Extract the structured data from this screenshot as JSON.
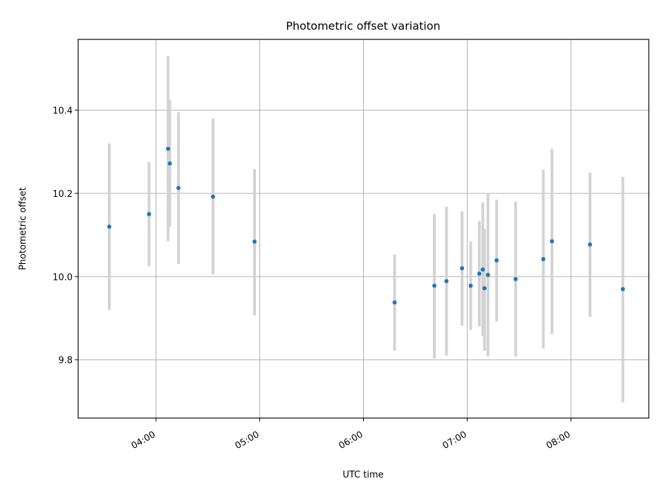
{
  "chart_data": {
    "type": "scatter",
    "title": "Photometric offset variation",
    "xlabel": "UTC time",
    "ylabel": "Photometric offset",
    "xlim": [
      "03:15",
      "08:45"
    ],
    "ylim": [
      9.66,
      10.57
    ],
    "x_ticks": [
      "04:00",
      "05:00",
      "06:00",
      "07:00",
      "08:00"
    ],
    "y_ticks": [
      "9.8",
      "10.0",
      "10.2",
      "10.4"
    ],
    "grid": true,
    "colors": {
      "point": "#1f77b4",
      "errorbar": "#d3d3d3",
      "grid": "#b0b0b0"
    },
    "points": [
      {
        "x": "03:33",
        "y": 10.12,
        "yerr_low": 9.92,
        "yerr_high": 10.32
      },
      {
        "x": "03:56",
        "y": 10.15,
        "yerr_low": 10.025,
        "yerr_high": 10.275
      },
      {
        "x": "04:07",
        "y": 10.307,
        "yerr_low": 10.085,
        "yerr_high": 10.53
      },
      {
        "x": "04:08",
        "y": 10.272,
        "yerr_low": 10.12,
        "yerr_high": 10.425
      },
      {
        "x": "04:13",
        "y": 10.213,
        "yerr_low": 10.03,
        "yerr_high": 10.395
      },
      {
        "x": "04:33",
        "y": 10.192,
        "yerr_low": 10.005,
        "yerr_high": 10.38
      },
      {
        "x": "04:57",
        "y": 10.084,
        "yerr_low": 9.907,
        "yerr_high": 10.258
      },
      {
        "x": "06:18",
        "y": 9.938,
        "yerr_low": 9.822,
        "yerr_high": 10.053
      },
      {
        "x": "06:41",
        "y": 9.978,
        "yerr_low": 9.803,
        "yerr_high": 10.15
      },
      {
        "x": "06:48",
        "y": 9.989,
        "yerr_low": 9.81,
        "yerr_high": 10.168
      },
      {
        "x": "06:57",
        "y": 10.02,
        "yerr_low": 9.882,
        "yerr_high": 10.157
      },
      {
        "x": "07:02",
        "y": 9.978,
        "yerr_low": 9.872,
        "yerr_high": 10.085
      },
      {
        "x": "07:07",
        "y": 10.007,
        "yerr_low": 9.88,
        "yerr_high": 10.133
      },
      {
        "x": "07:09",
        "y": 10.017,
        "yerr_low": 9.857,
        "yerr_high": 10.178
      },
      {
        "x": "07:10",
        "y": 9.972,
        "yerr_low": 9.822,
        "yerr_high": 10.115
      },
      {
        "x": "07:12",
        "y": 10.004,
        "yerr_low": 9.808,
        "yerr_high": 10.2
      },
      {
        "x": "07:17",
        "y": 10.039,
        "yerr_low": 9.892,
        "yerr_high": 10.185
      },
      {
        "x": "07:28",
        "y": 9.994,
        "yerr_low": 9.808,
        "yerr_high": 10.18
      },
      {
        "x": "07:44",
        "y": 10.042,
        "yerr_low": 9.827,
        "yerr_high": 10.257
      },
      {
        "x": "07:49",
        "y": 10.085,
        "yerr_low": 9.862,
        "yerr_high": 10.307
      },
      {
        "x": "08:11",
        "y": 10.077,
        "yerr_low": 9.903,
        "yerr_high": 10.25
      },
      {
        "x": "08:30",
        "y": 9.97,
        "yerr_low": 9.698,
        "yerr_high": 10.24
      }
    ]
  }
}
